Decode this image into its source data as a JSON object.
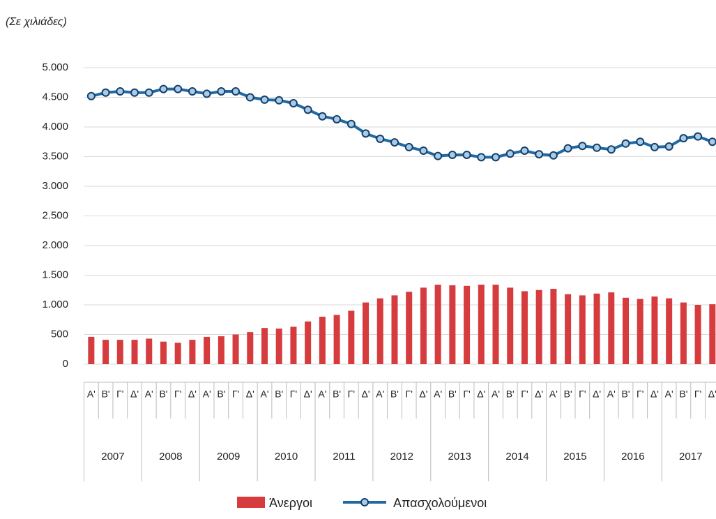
{
  "chart_data": {
    "type": "combo",
    "title": "(Σε χιλιάδες)",
    "categories": [
      "Α'",
      "Β'",
      "Γ'",
      "Δ'",
      "Α'",
      "Β'",
      "Γ'",
      "Δ'",
      "Α'",
      "Β'",
      "Γ'",
      "Δ'",
      "Α'",
      "Β'",
      "Γ'",
      "Δ'",
      "Α'",
      "Β'",
      "Γ'",
      "Δ'",
      "Α'",
      "Β'",
      "Γ'",
      "Δ'",
      "Α'",
      "Β'",
      "Γ'",
      "Δ'",
      "Α'",
      "Β'",
      "Γ'",
      "Δ'",
      "Α'",
      "Β'",
      "Γ'",
      "Δ'",
      "Α'",
      "Β'",
      "Γ'",
      "Δ'",
      "Α'",
      "Β'",
      "Γ'",
      "Δ'"
    ],
    "years": [
      "2007",
      "2008",
      "2009",
      "2010",
      "2011",
      "2012",
      "2013",
      "2014",
      "2015",
      "2016",
      "2017"
    ],
    "series": [
      {
        "name": "Άνεργοι",
        "type": "bar",
        "color": "#d63b3e",
        "values": [
          460,
          410,
          410,
          410,
          430,
          380,
          360,
          410,
          460,
          470,
          500,
          540,
          610,
          600,
          630,
          720,
          800,
          830,
          900,
          1040,
          1110,
          1160,
          1220,
          1290,
          1340,
          1330,
          1320,
          1340,
          1340,
          1290,
          1230,
          1250,
          1270,
          1180,
          1160,
          1190,
          1210,
          1120,
          1100,
          1140,
          1110,
          1040,
          1000,
          1010
        ]
      },
      {
        "name": "Απασχολούμενοι",
        "type": "line",
        "color": "#1f6aa5",
        "values": [
          4520,
          4580,
          4600,
          4580,
          4580,
          4640,
          4640,
          4600,
          4560,
          4600,
          4600,
          4500,
          4460,
          4450,
          4400,
          4290,
          4180,
          4130,
          4050,
          3890,
          3800,
          3740,
          3660,
          3600,
          3510,
          3530,
          3530,
          3490,
          3490,
          3550,
          3600,
          3540,
          3520,
          3640,
          3680,
          3650,
          3620,
          3720,
          3750,
          3660,
          3670,
          3810,
          3840,
          3750
        ]
      }
    ],
    "ylim": [
      0,
      5000
    ],
    "yticks": [
      0,
      500,
      {
        "value": 1000,
        "label": "1.000"
      },
      {
        "value": 1500,
        "label": "1.500"
      },
      {
        "value": 2000,
        "label": "2.000"
      },
      {
        "value": 2500,
        "label": "2.500"
      },
      {
        "value": 3000,
        "label": "3.000"
      },
      {
        "value": 3500,
        "label": "3.500"
      },
      {
        "value": 4000,
        "label": "4.000"
      },
      {
        "value": 4500,
        "label": "4.500"
      },
      {
        "value": 5000,
        "label": "5.000"
      }
    ],
    "grid": true,
    "legend": "bottom"
  }
}
